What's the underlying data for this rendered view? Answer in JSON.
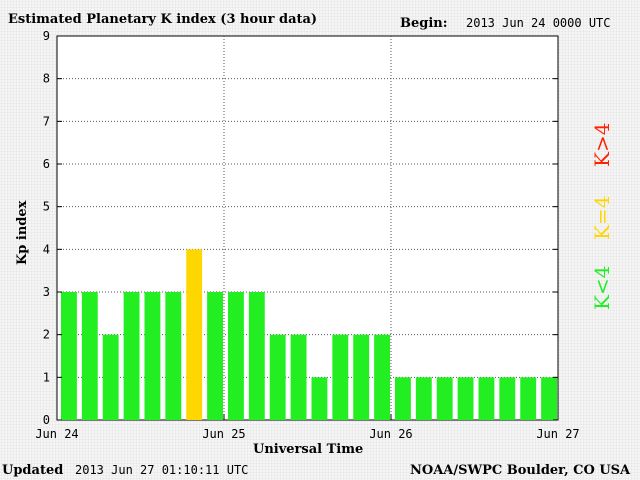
{
  "header": {
    "title": "Estimated Planetary K index (3 hour data)",
    "begin_label": "Begin:",
    "begin_value": "2013 Jun 24 0000 UTC"
  },
  "footer": {
    "updated_label": "Updated",
    "updated_value": "2013 Jun 27 01:10:11 UTC",
    "source": "NOAA/SWPC Boulder, CO USA"
  },
  "colors": {
    "below4": "#22ee22",
    "equal4": "#ffd700",
    "above4": "#ff2200"
  },
  "chart_data": {
    "type": "bar",
    "title": "Estimated Planetary K index (3 hour data)",
    "xlabel": "Universal Time",
    "ylabel": "Kp index",
    "ylim": [
      0,
      9
    ],
    "yticks": [
      "0",
      "1",
      "2",
      "3",
      "4",
      "5",
      "6",
      "7",
      "8",
      "9"
    ],
    "xticks": [
      "Jun 24",
      "Jun 25",
      "Jun 26",
      "Jun 27"
    ],
    "values": [
      3,
      3,
      2,
      3,
      3,
      3,
      4,
      3,
      3,
      3,
      2,
      2,
      1,
      2,
      2,
      2,
      1,
      1,
      1,
      1,
      1,
      1,
      1,
      1
    ],
    "grid": true,
    "legend": [
      {
        "label": "K<4",
        "color": "#22ee22"
      },
      {
        "label": "K=4",
        "color": "#ffd700"
      },
      {
        "label": "K>4",
        "color": "#ff2200"
      }
    ]
  }
}
